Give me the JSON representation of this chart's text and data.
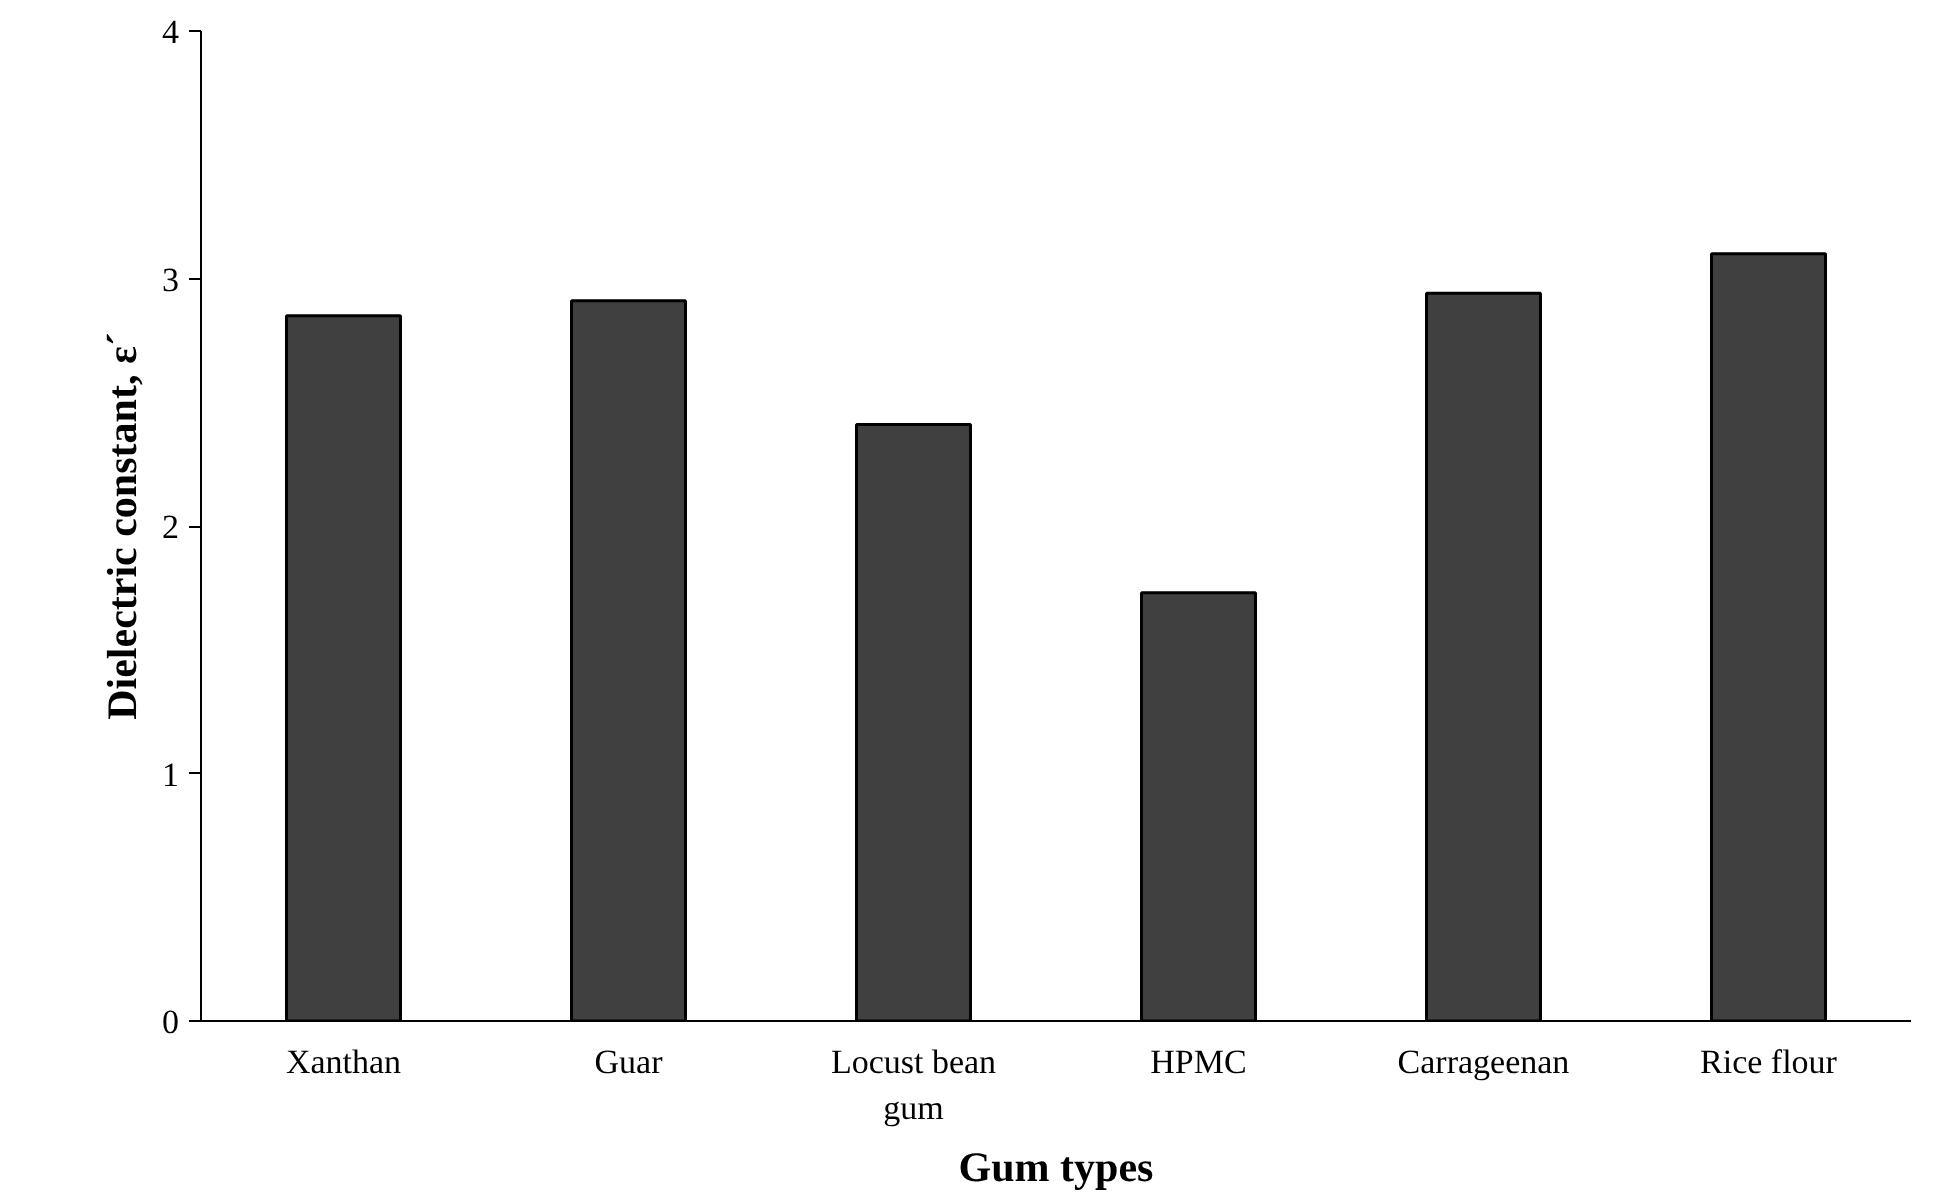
{
  "chart_data": {
    "type": "bar",
    "xlabel": "Gum types",
    "ylabel": "Dielectric constant, ε´",
    "categories": [
      "Xanthan",
      "Guar",
      "Locust bean gum",
      "HPMC",
      "Carrageenan",
      "Rice flour"
    ],
    "values": [
      2.85,
      2.91,
      2.41,
      1.73,
      2.94,
      3.1
    ],
    "color": "#404040",
    "ylim": [
      0,
      4
    ],
    "yticks": [
      0,
      1,
      2,
      3,
      4
    ],
    "grid": false
  }
}
